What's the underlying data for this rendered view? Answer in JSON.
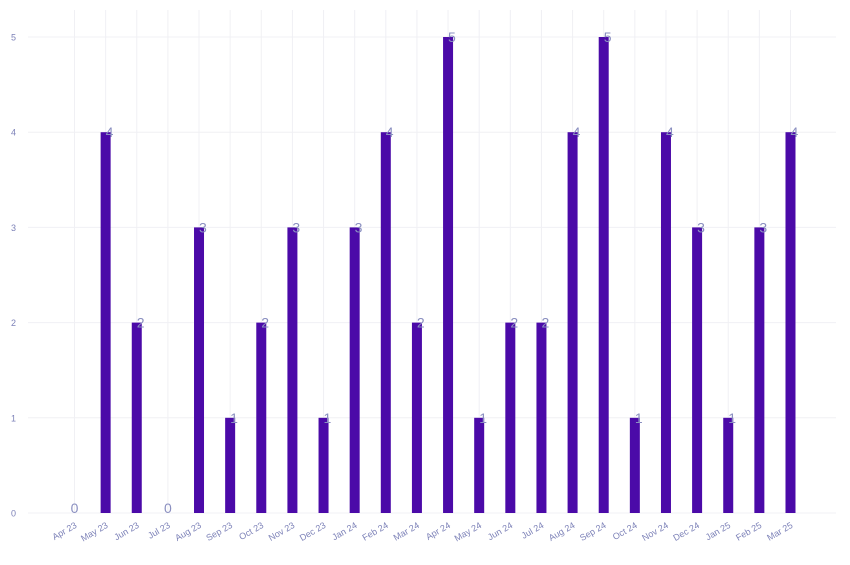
{
  "chart_data": {
    "type": "bar",
    "categories": [
      "Apr 23",
      "May 23",
      "Jun 23",
      "Jul 23",
      "Aug 23",
      "Sep 23",
      "Oct 23",
      "Nov 23",
      "Dec 23",
      "Jan 24",
      "Feb 24",
      "Mar 24",
      "Apr 24",
      "May 24",
      "Jun 24",
      "Jul 24",
      "Aug 24",
      "Sep 24",
      "Oct 24",
      "Nov 24",
      "Dec 24",
      "Jan 25",
      "Feb 25",
      "Mar 25"
    ],
    "values": [
      0,
      4,
      2,
      0,
      3,
      1,
      2,
      3,
      1,
      3,
      4,
      2,
      5,
      1,
      2,
      2,
      4,
      5,
      1,
      4,
      3,
      1,
      3,
      4
    ],
    "y_ticks": [
      0,
      1,
      2,
      3,
      4,
      5
    ],
    "ylim": [
      0,
      5
    ],
    "grid": true,
    "data_labels": true,
    "colors": {
      "bar": "#4b0aa8",
      "label": "#8a8fc0",
      "tick": "#7d82b8",
      "grid": "#f0f0f4"
    }
  }
}
